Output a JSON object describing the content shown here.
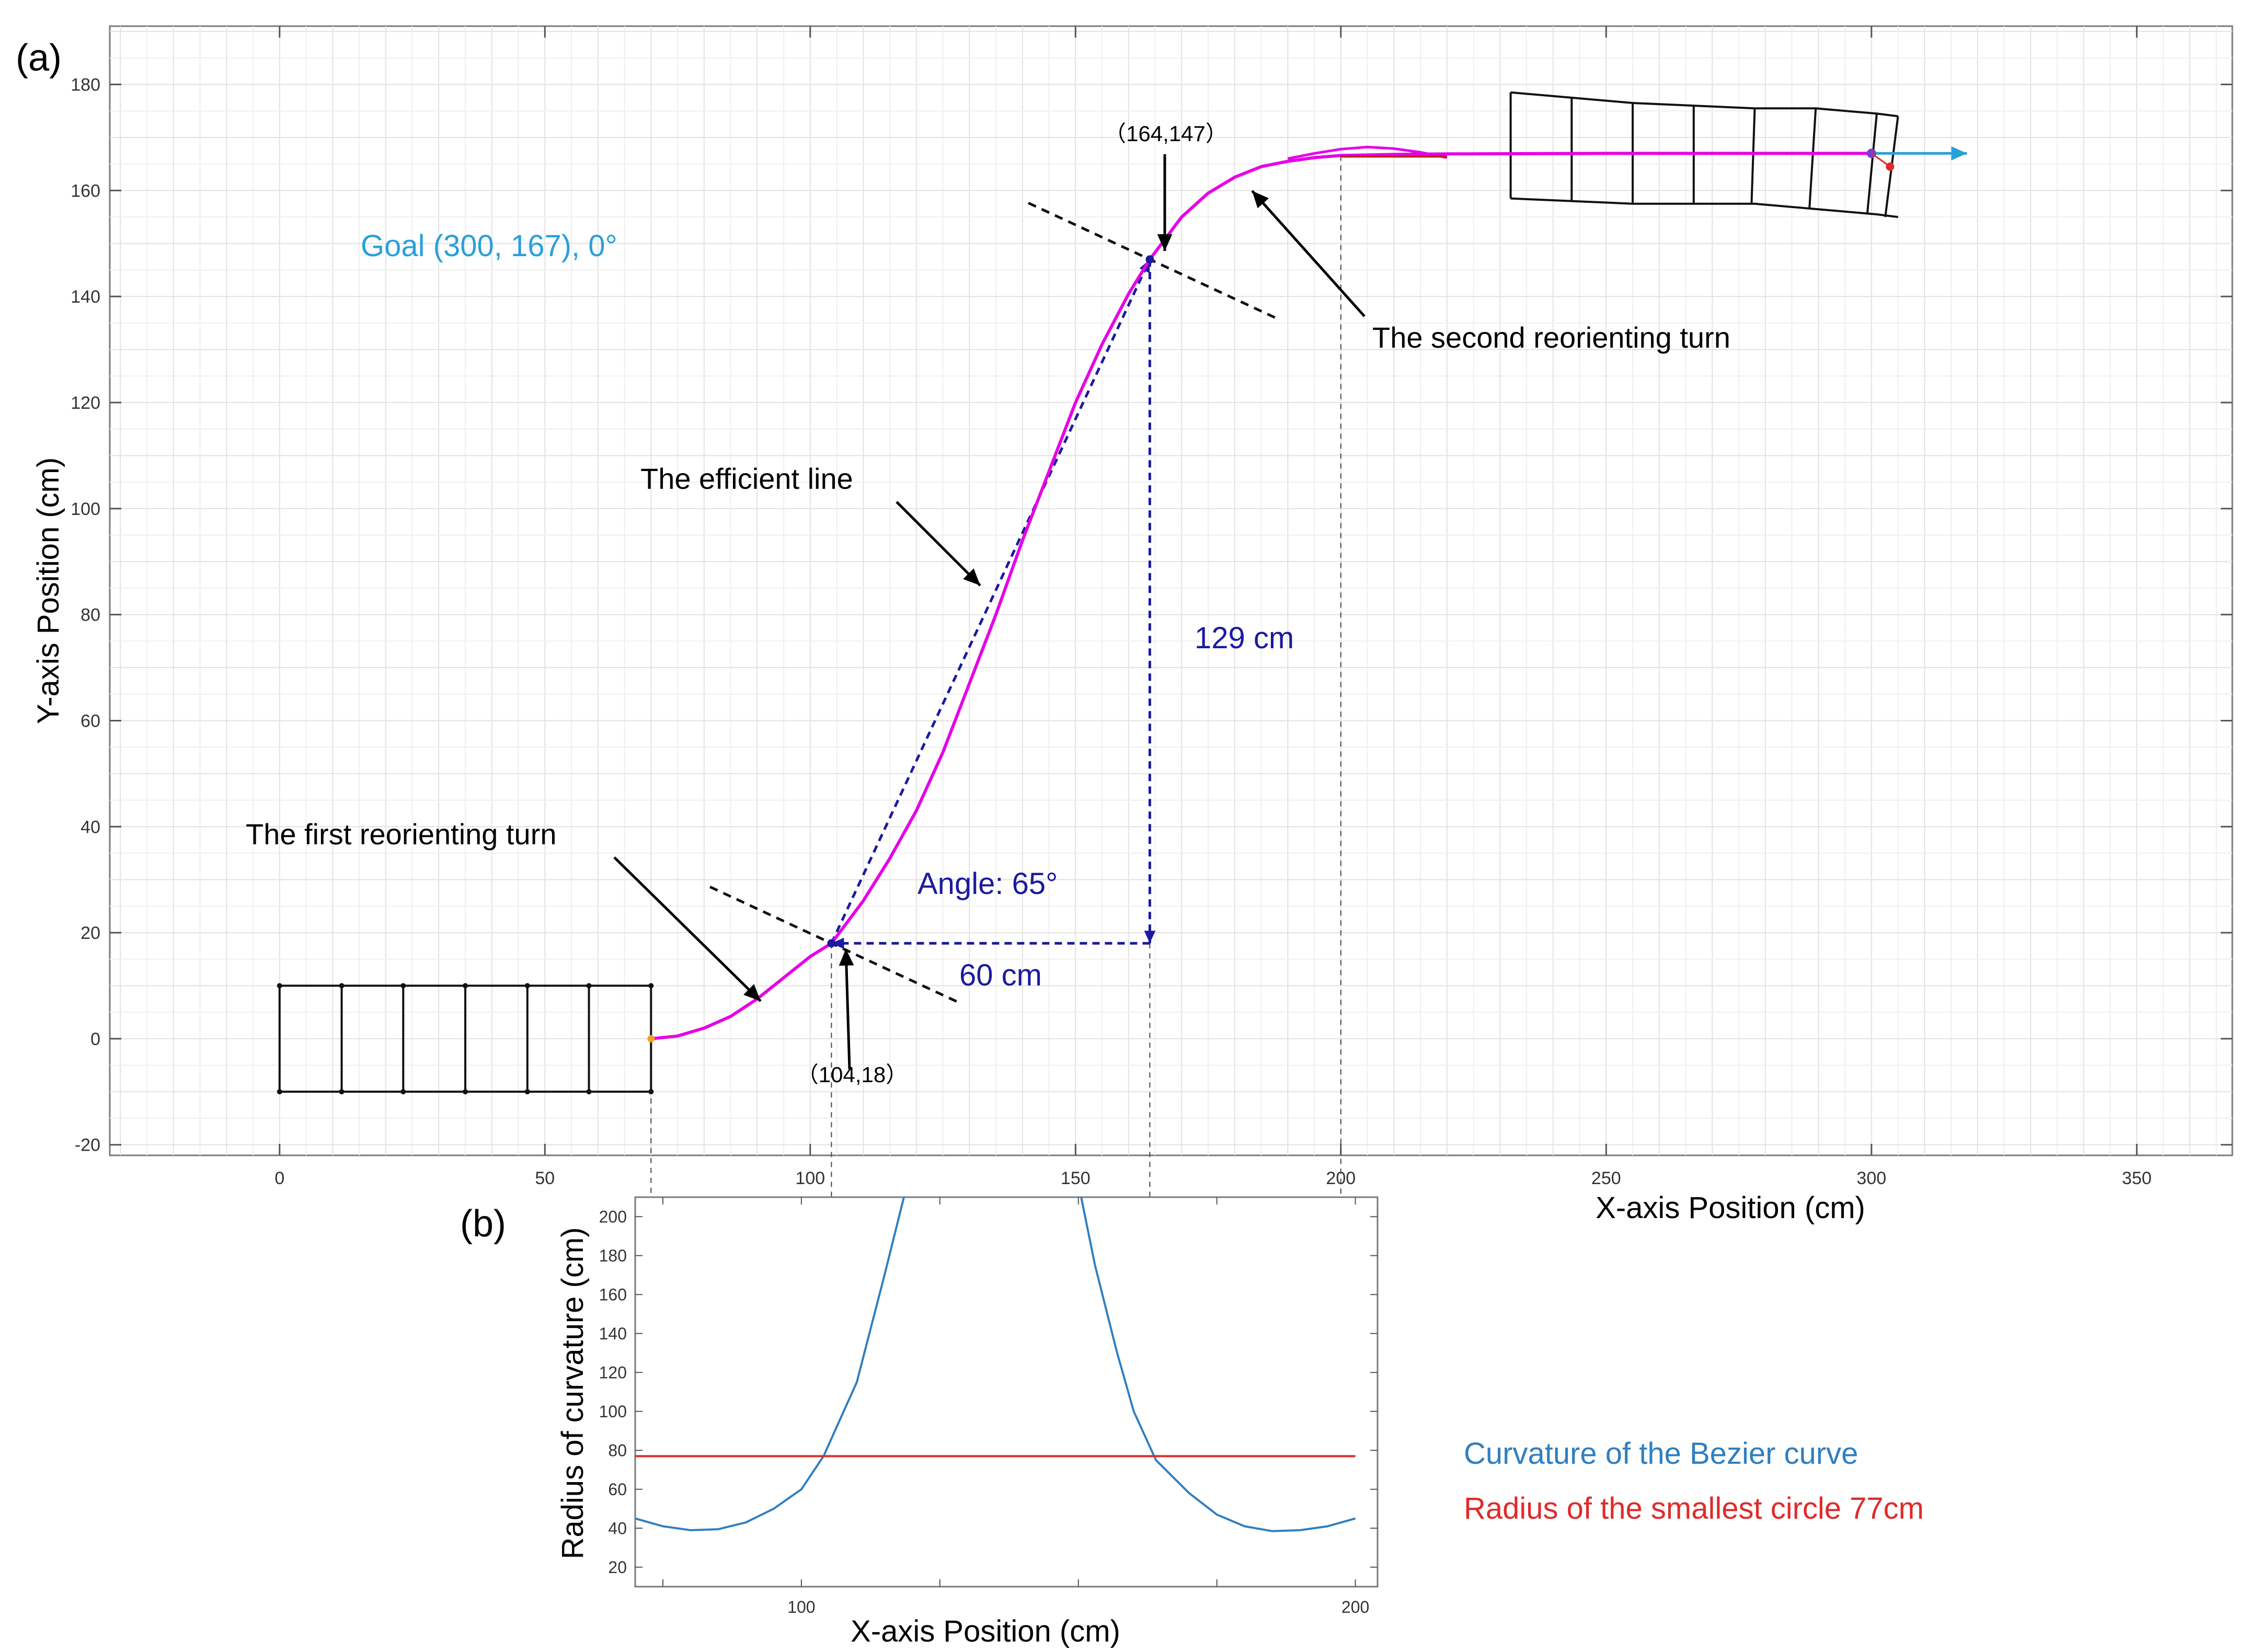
{
  "panel_labels": {
    "a": "(a)",
    "b": "(b)"
  },
  "colors": {
    "path": "#e600e6",
    "efficient_line": "#1a1aa0",
    "dims": "#1a1aa0",
    "goal": "#2aa0d8",
    "curvature": "#2f7fc0",
    "min_radius": "#e02a2a",
    "robot": "#111111",
    "start_dot": "#f2a020",
    "red_dot": "#e02a2a",
    "purple_dot": "#7a3cc8"
  },
  "chart_data": [
    {
      "type": "line",
      "panel": "(a)",
      "xlabel": "X-axis Position (cm)",
      "ylabel": "Y-axis Position (cm)",
      "xlim": [
        -32,
        368
      ],
      "ylim": [
        -22,
        191
      ],
      "x_ticks": [
        0,
        50,
        100,
        150,
        200,
        250,
        300,
        350
      ],
      "y_ticks": [
        -20,
        0,
        20,
        40,
        60,
        80,
        100,
        120,
        140,
        160,
        180
      ],
      "grid": true,
      "series": [
        {
          "kind": "bezier path",
          "x": [
            70,
            75,
            80,
            85,
            90,
            95,
            100,
            104,
            110,
            115,
            120,
            125,
            130,
            135,
            140,
            145,
            150,
            155,
            160,
            164,
            170,
            175,
            180,
            185,
            190,
            195,
            200,
            210,
            220,
            250,
            280,
            300
          ],
          "y": [
            0,
            0.5,
            2,
            4.2,
            7.5,
            11.5,
            15.5,
            18,
            26,
            34,
            43,
            54,
            67,
            80,
            94,
            107,
            120,
            131,
            140.5,
            147,
            155,
            159.5,
            162.5,
            164.5,
            165.5,
            166.2,
            166.6,
            166.8,
            166.9,
            167,
            167,
            167
          ]
        },
        {
          "kind": "bump",
          "x": [
            190,
            195,
            200,
            205,
            210,
            215,
            220
          ],
          "y": [
            166,
            167,
            167.8,
            168.2,
            167.9,
            167.2,
            166.2
          ]
        }
      ],
      "efficient_line": {
        "from": [
          104,
          18
        ],
        "to": [
          164,
          147
        ]
      },
      "dimension_lines": {
        "vertical": {
          "x": 164,
          "y_from": 147,
          "y_to": 18,
          "label": "129 cm"
        },
        "horizontal": {
          "y": 18,
          "x_from": 164,
          "x_to": 104,
          "label": "60 cm"
        }
      },
      "points": [
        {
          "label": "（164,147）",
          "x": 164,
          "y": 147
        },
        {
          "label": "（104,18）",
          "x": 104,
          "y": 18
        }
      ],
      "annotations": {
        "goal": "Goal (300, 167), 0°",
        "angle": "Angle: 65°",
        "efficient_line": "The efficient line",
        "first_turn": "The first reorienting turn",
        "second_turn": "The second reorienting turn"
      },
      "start_robot": {
        "x_columns": [
          0,
          11.7,
          23.3,
          35,
          46.7,
          58.3,
          70
        ],
        "y_range": [
          -10,
          10
        ]
      },
      "goal_robot": {
        "top_y": [
          178.5,
          177.5,
          176.5,
          176,
          175.5,
          175.5,
          174.5,
          174
        ],
        "bottom_y": [
          158.5,
          158,
          157.5,
          157.5,
          157.5,
          156.5,
          155.5,
          155
        ],
        "x_columns": [
          232,
          243.5,
          255,
          266.5,
          278,
          289.5,
          301,
          305
        ]
      },
      "goal_arrow": {
        "from": [
          300,
          167
        ],
        "to": [
          318,
          167
        ]
      },
      "reference_x": [
        70,
        104,
        164,
        200
      ]
    },
    {
      "type": "line",
      "panel": "(b)",
      "xlabel": "X-axis Position (cm)",
      "ylabel": "Radius of curvature (cm)",
      "xlim": [
        70,
        204
      ],
      "ylim": [
        10,
        210
      ],
      "x_ticks": [
        100,
        200
      ],
      "y_ticks": [
        20,
        40,
        60,
        80,
        100,
        120,
        140,
        160,
        180,
        200
      ],
      "series": [
        {
          "name": "Curvature of the Bezier curve",
          "segments": [
            {
              "x": [
                70,
                75,
                80,
                85,
                90,
                95,
                100,
                104,
                110,
                115,
                118.5
              ],
              "y": [
                45,
                41,
                39,
                39.5,
                43,
                50,
                60,
                77,
                115,
                170,
                210
              ]
            },
            {
              "x": [
                150.5,
                153,
                157,
                160,
                164,
                170,
                175,
                180,
                185,
                190,
                195,
                200
              ],
              "y": [
                210,
                175,
                130,
                100,
                75,
                58,
                47,
                41,
                38.5,
                39,
                41,
                45
              ]
            }
          ]
        },
        {
          "name": "Radius of the smallest circle 77cm",
          "x": [
            70,
            200
          ],
          "y": [
            77,
            77
          ]
        }
      ]
    }
  ]
}
